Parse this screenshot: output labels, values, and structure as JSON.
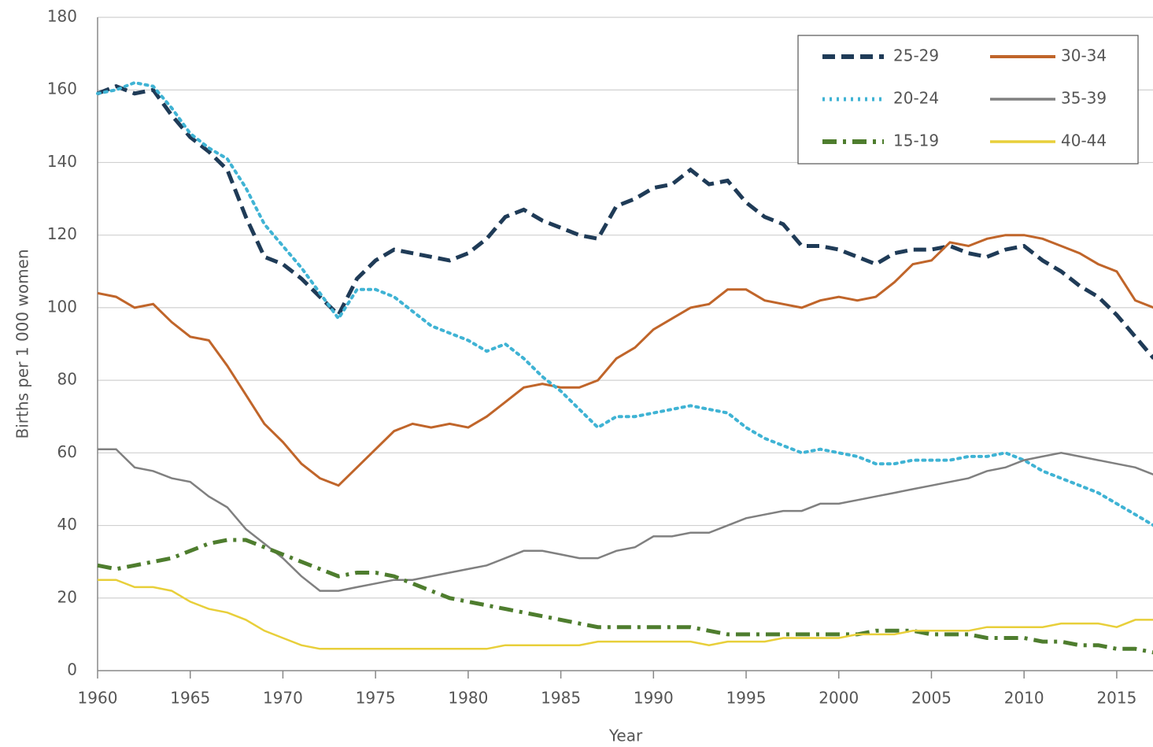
{
  "chart_data": {
    "type": "line",
    "x_label": "Year",
    "y_label": "Births per 1 000 women",
    "x": [
      1960,
      1961,
      1962,
      1963,
      1964,
      1965,
      1966,
      1967,
      1968,
      1969,
      1970,
      1971,
      1972,
      1973,
      1974,
      1975,
      1976,
      1977,
      1978,
      1979,
      1980,
      1981,
      1982,
      1983,
      1984,
      1985,
      1986,
      1987,
      1988,
      1989,
      1990,
      1991,
      1992,
      1993,
      1994,
      1995,
      1996,
      1997,
      1998,
      1999,
      2000,
      2001,
      2002,
      2003,
      2004,
      2005,
      2006,
      2007,
      2008,
      2009,
      2010,
      2011,
      2012,
      2013,
      2014,
      2015,
      2016,
      2017
    ],
    "xlim": [
      1960,
      2017
    ],
    "xticks": [
      1960,
      1965,
      1970,
      1975,
      1980,
      1985,
      1990,
      1995,
      2000,
      2005,
      2010,
      2015
    ],
    "ylim": [
      0,
      180
    ],
    "yticks": [
      0,
      20,
      40,
      60,
      80,
      100,
      120,
      140,
      160,
      180
    ],
    "grid": true,
    "legend": "upper right",
    "series": [
      {
        "name": "25-29",
        "color": "#1f3b57",
        "dash": "dashed",
        "values": [
          159,
          161,
          159,
          160,
          153,
          147,
          143,
          138,
          125,
          114,
          112,
          108,
          103,
          98,
          108,
          113,
          116,
          115,
          114,
          113,
          115,
          119,
          125,
          127,
          124,
          122,
          120,
          119,
          128,
          130,
          133,
          134,
          138,
          134,
          135,
          129,
          125,
          123,
          117,
          117,
          116,
          114,
          112,
          115,
          116,
          116,
          117,
          115,
          114,
          116,
          117,
          113,
          110,
          106,
          103,
          98,
          92,
          86
        ]
      },
      {
        "name": "30-34",
        "color": "#c0652a",
        "dash": "solid",
        "values": [
          104,
          103,
          100,
          101,
          96,
          92,
          91,
          84,
          76,
          68,
          63,
          57,
          53,
          51,
          56,
          61,
          66,
          68,
          67,
          68,
          67,
          70,
          74,
          78,
          79,
          78,
          78,
          80,
          86,
          89,
          94,
          97,
          100,
          101,
          105,
          105,
          102,
          101,
          100,
          102,
          103,
          102,
          103,
          107,
          112,
          113,
          118,
          117,
          119,
          120,
          120,
          119,
          117,
          115,
          112,
          110,
          102,
          100
        ]
      },
      {
        "name": "20-24",
        "color": "#3fb3d4",
        "dash": "dotted",
        "values": [
          159,
          160,
          162,
          161,
          155,
          148,
          144,
          141,
          133,
          123,
          117,
          111,
          104,
          97,
          105,
          105,
          103,
          99,
          95,
          93,
          91,
          88,
          90,
          86,
          81,
          77,
          72,
          67,
          70,
          70,
          71,
          72,
          73,
          72,
          71,
          67,
          64,
          62,
          60,
          61,
          60,
          59,
          57,
          57,
          58,
          58,
          58,
          59,
          59,
          60,
          58,
          55,
          53,
          51,
          49,
          46,
          43,
          40
        ]
      },
      {
        "name": "35-39",
        "color": "#808080",
        "dash": "solid",
        "values": [
          61,
          61,
          56,
          55,
          53,
          52,
          48,
          45,
          39,
          35,
          31,
          26,
          22,
          22,
          23,
          24,
          25,
          25,
          26,
          27,
          28,
          29,
          31,
          33,
          33,
          32,
          31,
          31,
          33,
          34,
          37,
          37,
          38,
          38,
          40,
          42,
          43,
          44,
          44,
          46,
          46,
          47,
          48,
          49,
          50,
          51,
          52,
          53,
          55,
          56,
          58,
          59,
          60,
          59,
          58,
          57,
          56,
          54
        ]
      },
      {
        "name": "15-19",
        "color": "#4e7d2e",
        "dash": "dashdot",
        "values": [
          29,
          28,
          29,
          30,
          31,
          33,
          35,
          36,
          36,
          34,
          32,
          30,
          28,
          26,
          27,
          27,
          26,
          24,
          22,
          20,
          19,
          18,
          17,
          16,
          15,
          14,
          13,
          12,
          12,
          12,
          12,
          12,
          12,
          11,
          10,
          10,
          10,
          10,
          10,
          10,
          10,
          10,
          11,
          11,
          11,
          10,
          10,
          10,
          9,
          9,
          9,
          8,
          8,
          7,
          7,
          6,
          6,
          5
        ]
      },
      {
        "name": "40-44",
        "color": "#e8cf3a",
        "dash": "solid",
        "values": [
          25,
          25,
          23,
          23,
          22,
          19,
          17,
          16,
          14,
          11,
          9,
          7,
          6,
          6,
          6,
          6,
          6,
          6,
          6,
          6,
          6,
          6,
          7,
          7,
          7,
          7,
          7,
          8,
          8,
          8,
          8,
          8,
          8,
          7,
          8,
          8,
          8,
          9,
          9,
          9,
          9,
          10,
          10,
          10,
          11,
          11,
          11,
          11,
          12,
          12,
          12,
          12,
          13,
          13,
          13,
          12,
          14,
          14
        ]
      }
    ]
  }
}
